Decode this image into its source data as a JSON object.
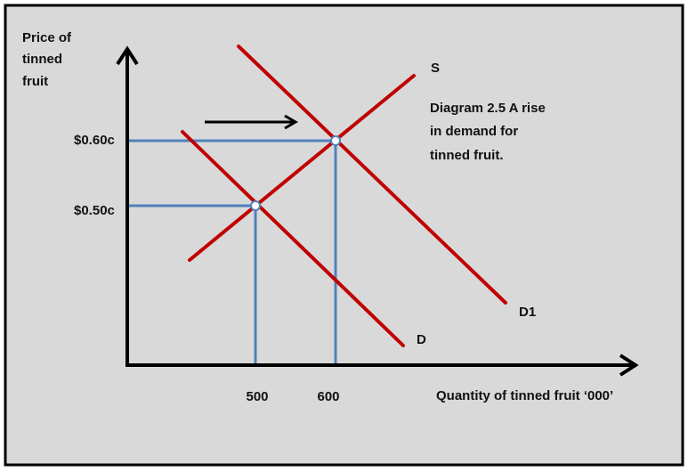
{
  "y_axis": {
    "label_lines": [
      "Price of",
      "tinned",
      "fruit"
    ],
    "ticks": [
      "$0.60c",
      "$0.50c"
    ]
  },
  "x_axis": {
    "label": "Quantity of tinned fruit ‘000’",
    "ticks": [
      "500",
      "600"
    ]
  },
  "curves": {
    "supply": "S",
    "demand": "D",
    "new_demand": "D1"
  },
  "caption_lines": [
    "Diagram 2.5 A rise",
    "in demand for",
    "tinned fruit."
  ]
}
